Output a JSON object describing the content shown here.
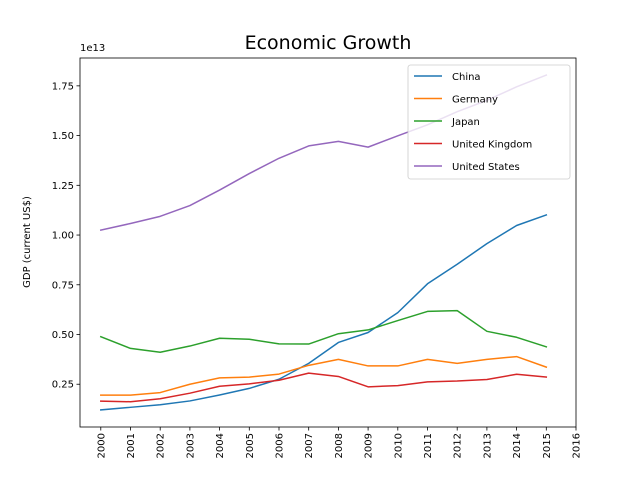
{
  "chart_data": {
    "type": "line",
    "title": "Economic Growth",
    "xlabel": "",
    "ylabel": "GDP (current US$)",
    "y_offset_label": "1e13",
    "x": [
      2000,
      2001,
      2002,
      2003,
      2004,
      2005,
      2006,
      2007,
      2008,
      2009,
      2010,
      2011,
      2012,
      2013,
      2014,
      2015
    ],
    "xticks": [
      2000,
      2001,
      2002,
      2003,
      2004,
      2005,
      2006,
      2007,
      2008,
      2009,
      2010,
      2011,
      2012,
      2013,
      2014,
      2015,
      2016
    ],
    "xlim": [
      1999.3,
      2016.0
    ],
    "ylim": [
      0.035,
      1.89
    ],
    "yticks": [
      "0.25",
      "0.50",
      "0.75",
      "1.00",
      "1.25",
      "1.50",
      "1.75"
    ],
    "ytick_values": [
      0.25,
      0.5,
      0.75,
      1.0,
      1.25,
      1.5,
      1.75
    ],
    "grid": false,
    "legend_position": "upper right",
    "series": [
      {
        "name": "China",
        "color": "#1f77b4",
        "values": [
          0.121,
          0.134,
          0.147,
          0.166,
          0.196,
          0.229,
          0.275,
          0.355,
          0.46,
          0.51,
          0.61,
          0.755,
          0.853,
          0.957,
          1.048,
          1.101
        ]
      },
      {
        "name": "Germany",
        "color": "#ff7f0e",
        "values": [
          0.195,
          0.195,
          0.208,
          0.25,
          0.282,
          0.286,
          0.301,
          0.345,
          0.375,
          0.342,
          0.342,
          0.375,
          0.355,
          0.375,
          0.389,
          0.336
        ]
      },
      {
        "name": "Japan",
        "color": "#2ca02c",
        "values": [
          0.489,
          0.43,
          0.411,
          0.442,
          0.481,
          0.476,
          0.453,
          0.452,
          0.504,
          0.523,
          0.57,
          0.616,
          0.62,
          0.516,
          0.486,
          0.438
        ]
      },
      {
        "name": "United Kingdom",
        "color": "#d62728",
        "values": [
          0.165,
          0.162,
          0.177,
          0.205,
          0.24,
          0.252,
          0.27,
          0.306,
          0.289,
          0.237,
          0.243,
          0.262,
          0.266,
          0.274,
          0.3,
          0.286
        ]
      },
      {
        "name": "United States",
        "color": "#9467bd",
        "values": [
          1.025,
          1.058,
          1.094,
          1.148,
          1.226,
          1.309,
          1.386,
          1.448,
          1.471,
          1.442,
          1.499,
          1.554,
          1.62,
          1.677,
          1.745,
          1.804
        ]
      }
    ]
  }
}
